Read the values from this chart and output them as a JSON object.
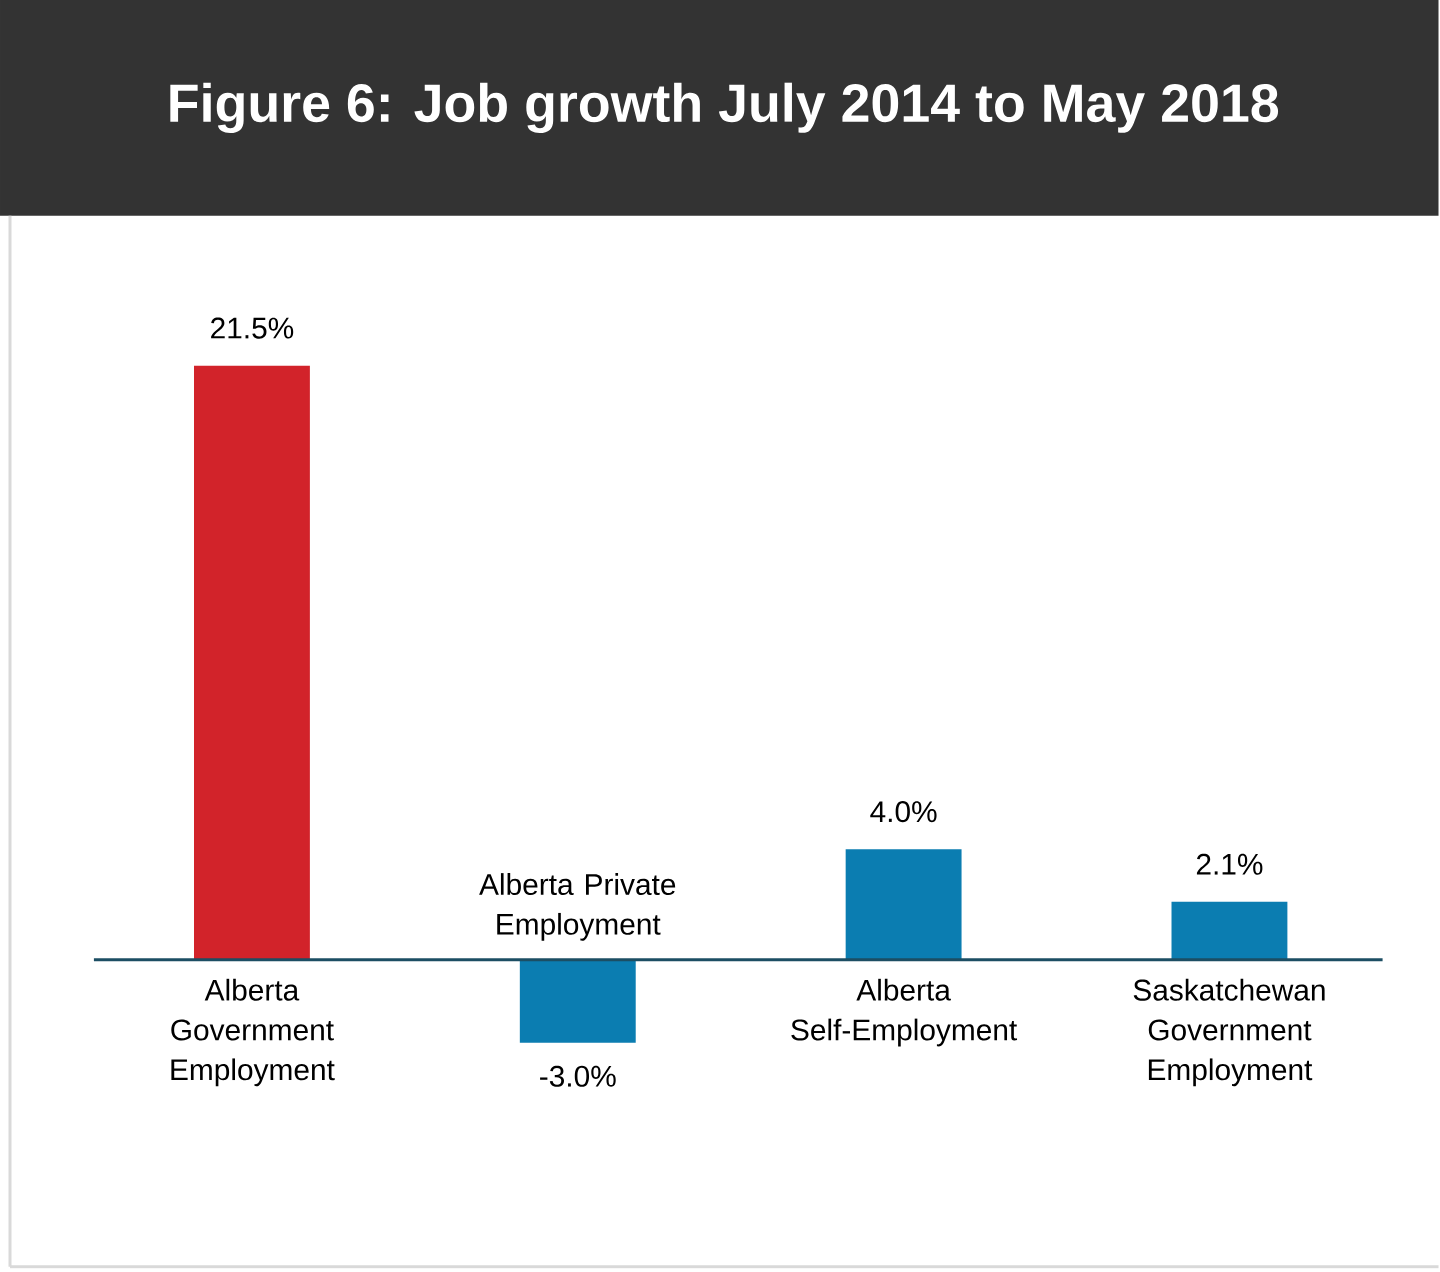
{
  "chart_data": {
    "type": "bar",
    "title": "Figure 6: Job growth July 2014 to May 2018",
    "categories": [
      "Alberta Government Employment",
      "Alberta Private Employment",
      "Alberta Self-Employment",
      "Saskatchewan Government Employment"
    ],
    "values": [
      21.5,
      -3.0,
      4.0,
      2.1
    ],
    "colors": [
      "#d2232a",
      "#0b7db1",
      "#0b7db1",
      "#0b7db1"
    ],
    "value_labels": [
      "21.5%",
      "-3.0%",
      "4.0%",
      "2.1%"
    ]
  }
}
